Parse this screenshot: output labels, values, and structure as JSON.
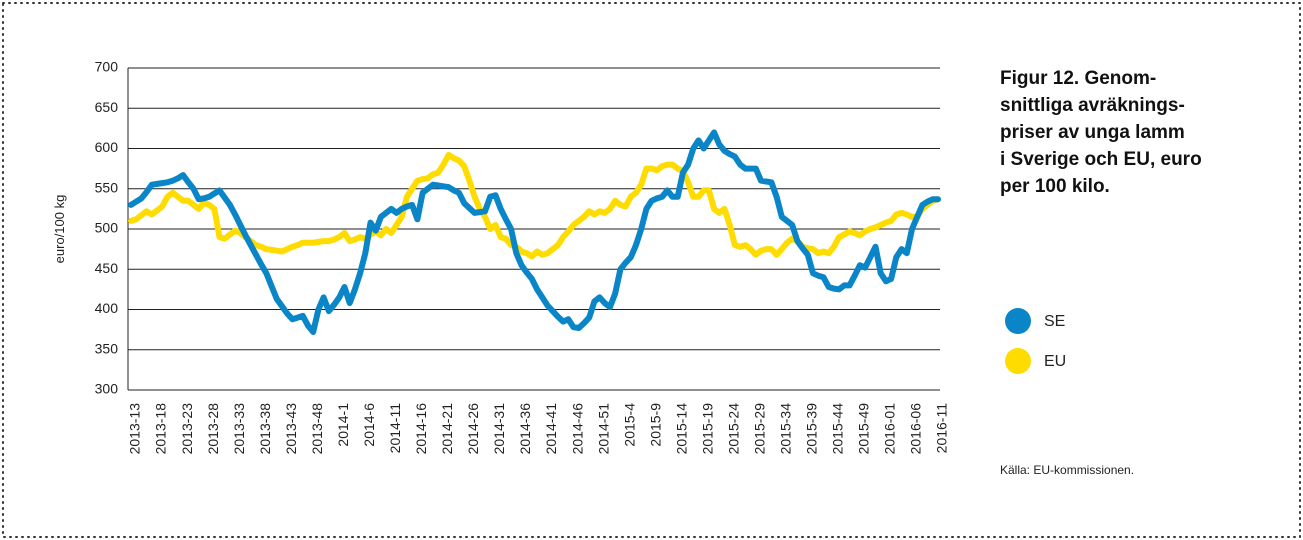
{
  "chart_data": {
    "type": "line",
    "title_lines": [
      "Figur 12. Genom-",
      "snittliga avräknings-",
      "priser av unga lamm",
      "i Sverige och EU, euro",
      "per 100 kilo."
    ],
    "y_label": "euro/100 kg",
    "source": "Källa: EU-kommissionen.",
    "legend": "right",
    "grid": true,
    "ylim": [
      300,
      700
    ],
    "yticks": [
      300,
      350,
      400,
      450,
      500,
      550,
      600,
      650,
      700
    ],
    "categories": [
      "2013-13",
      null,
      null,
      null,
      null,
      "2013-18",
      null,
      null,
      null,
      null,
      "2013-23",
      null,
      null,
      null,
      null,
      "2013-28",
      null,
      null,
      null,
      null,
      "2013-33",
      null,
      null,
      null,
      null,
      "2013-38",
      null,
      null,
      null,
      null,
      "2013-43",
      null,
      null,
      null,
      null,
      "2013-48",
      null,
      null,
      null,
      null,
      "2014-1",
      null,
      null,
      null,
      null,
      "2014-6",
      null,
      null,
      null,
      null,
      "2014-11",
      null,
      null,
      null,
      null,
      "2014-16",
      null,
      null,
      null,
      null,
      "2014-21",
      null,
      null,
      null,
      null,
      "2014-26",
      null,
      null,
      null,
      null,
      "2014-31",
      null,
      null,
      null,
      null,
      "2014-36",
      null,
      null,
      null,
      null,
      "2014-41",
      null,
      null,
      null,
      null,
      "2014-46",
      null,
      null,
      null,
      null,
      "2014-51",
      null,
      null,
      null,
      null,
      "2015-4",
      null,
      null,
      null,
      null,
      "2015-9",
      null,
      null,
      null,
      null,
      "2015-14",
      null,
      null,
      null,
      null,
      "2015-19",
      null,
      null,
      null,
      null,
      "2015-24",
      null,
      null,
      null,
      null,
      "2015-29",
      null,
      null,
      null,
      null,
      "2015-34",
      null,
      null,
      null,
      null,
      "2015-39",
      null,
      null,
      null,
      null,
      "2015-44",
      null,
      null,
      null,
      null,
      "2015-49",
      null,
      null,
      null,
      null,
      "2016-01",
      null,
      null,
      null,
      null,
      "2016-06",
      null,
      null,
      null,
      null,
      "2016-11"
    ],
    "series": [
      {
        "name": "SE",
        "color": "#0a86c8",
        "values": [
          530,
          534,
          538,
          546,
          555,
          556,
          557,
          558,
          560,
          563,
          567,
          558,
          550,
          537,
          538,
          540,
          544,
          548,
          539,
          530,
          518,
          505,
          492,
          480,
          468,
          456,
          445,
          429,
          413,
          404,
          395,
          388,
          390,
          392,
          380,
          372,
          400,
          415,
          398,
          406,
          415,
          428,
          408,
          425,
          445,
          470,
          508,
          498,
          515,
          520,
          525,
          520,
          525,
          528,
          530,
          512,
          545,
          550,
          555,
          554,
          553,
          552,
          548,
          545,
          532,
          526,
          520,
          521,
          522,
          540,
          542,
          525,
          512,
          500,
          470,
          455,
          446,
          438,
          425,
          415,
          405,
          398,
          391,
          385,
          388,
          378,
          377,
          383,
          390,
          410,
          415,
          408,
          403,
          420,
          450,
          458,
          465,
          480,
          500,
          525,
          535,
          538,
          540,
          548,
          540,
          540,
          570,
          580,
          600,
          610,
          600,
          610,
          620,
          605,
          597,
          593,
          590,
          580,
          575,
          575,
          575,
          560,
          559,
          558,
          540,
          515,
          510,
          505,
          485,
          476,
          468,
          445,
          442,
          440,
          428,
          426,
          425,
          430,
          430,
          442,
          455,
          452,
          465,
          478,
          445,
          435,
          438,
          465,
          475,
          470,
          500,
          515,
          530,
          534,
          537,
          537
        ]
      },
      {
        "name": "EU",
        "color": "#ffdc00",
        "values": [
          510,
          512,
          517,
          522,
          518,
          523,
          528,
          540,
          545,
          540,
          535,
          535,
          530,
          525,
          533,
          530,
          525,
          490,
          488,
          493,
          498,
          495,
          490,
          485,
          480,
          478,
          475,
          474,
          473,
          472,
          475,
          478,
          480,
          483,
          483,
          483,
          484,
          485,
          485,
          487,
          490,
          495,
          485,
          487,
          490,
          488,
          493,
          497,
          492,
          500,
          495,
          505,
          515,
          540,
          550,
          560,
          562,
          563,
          568,
          570,
          580,
          592,
          588,
          585,
          578,
          560,
          540,
          525,
          515,
          500,
          505,
          490,
          488,
          480,
          478,
          472,
          470,
          466,
          472,
          468,
          470,
          475,
          480,
          490,
          497,
          505,
          510,
          515,
          522,
          518,
          522,
          520,
          525,
          535,
          530,
          528,
          540,
          545,
          555,
          575,
          575,
          573,
          578,
          580,
          580,
          575,
          572,
          558,
          540,
          540,
          548,
          548,
          525,
          520,
          525,
          505,
          480,
          478,
          480,
          475,
          468,
          473,
          475,
          475,
          468,
          475,
          483,
          488,
          485,
          478,
          476,
          475,
          470,
          472,
          470,
          478,
          490,
          493,
          497,
          495,
          492,
          497,
          500,
          502,
          505,
          508,
          510,
          518,
          520,
          518,
          515,
          515,
          525,
          530,
          535,
          537
        ]
      }
    ]
  }
}
